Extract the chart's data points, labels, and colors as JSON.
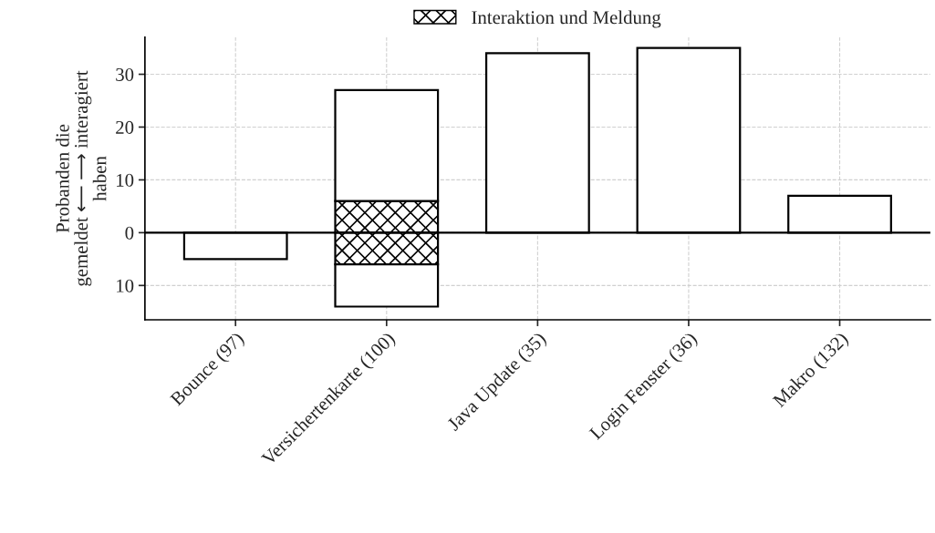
{
  "chart_data": {
    "type": "bar",
    "stacked": true,
    "categories": [
      "Bounce (97)",
      "Versichertenkarte (100)",
      "Java Update (35)",
      "Login Fenster (36)",
      "Makro (132)"
    ],
    "series": [
      {
        "name": "Interaktion und Meldung",
        "color": "#000000",
        "values": [
          null,
          6,
          null,
          null,
          null
        ]
      },
      {
        "color": "#000000",
        "values": [
          null,
          -6,
          null,
          null,
          null
        ]
      },
      {
        "color": "#ffffff",
        "values": [
          null,
          21,
          34,
          35,
          7
        ]
      },
      {
        "color": "#ffffff",
        "values": [
          -5,
          -8,
          null,
          null,
          null
        ]
      }
    ],
    "ylabel": "Probanden die\ngemeldet ⟵ ⟶ interagiert\nhaben",
    "ylim": [
      -16.5,
      37
    ],
    "yticks": [
      {
        "value": -10,
        "label": "10"
      },
      0,
      10,
      20,
      30
    ],
    "ref_lines": [
      {
        "axis": "y",
        "value": 0,
        "color": "#000000"
      }
    ],
    "grid": true,
    "legend": "top"
  }
}
